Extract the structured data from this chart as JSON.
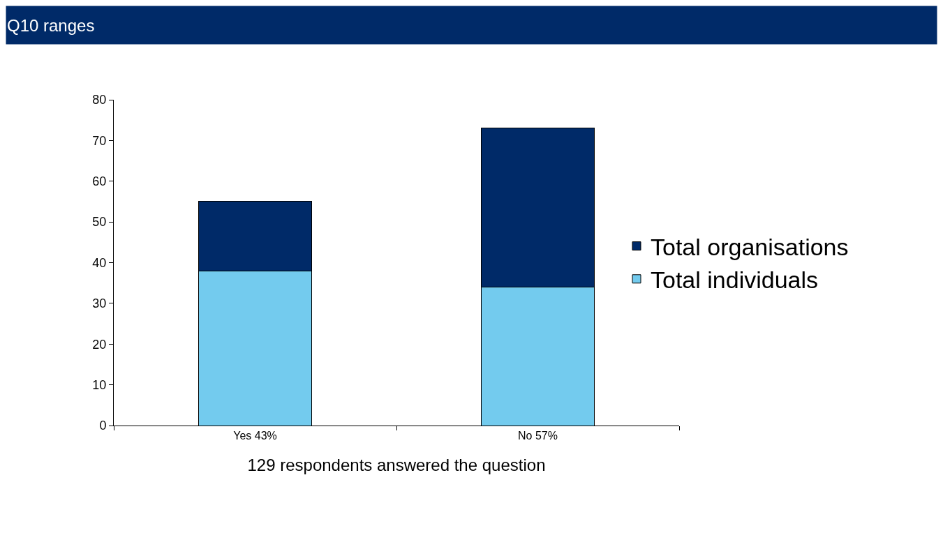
{
  "chart_data": {
    "type": "bar",
    "title": "Q10 ranges",
    "xlabel": "129 respondents answered the question",
    "categories": [
      "Yes 43%",
      "No 57%"
    ],
    "stacked": true,
    "series": [
      {
        "name": "Total individuals",
        "color": "#73cbee",
        "values": [
          38,
          34
        ]
      },
      {
        "name": "Total organisations",
        "color": "#002a68",
        "values": [
          17,
          39
        ]
      }
    ],
    "ylim": [
      0,
      80
    ],
    "yticks": [
      0,
      10,
      20,
      30,
      40,
      50,
      60,
      70,
      80
    ],
    "legend": "right"
  }
}
